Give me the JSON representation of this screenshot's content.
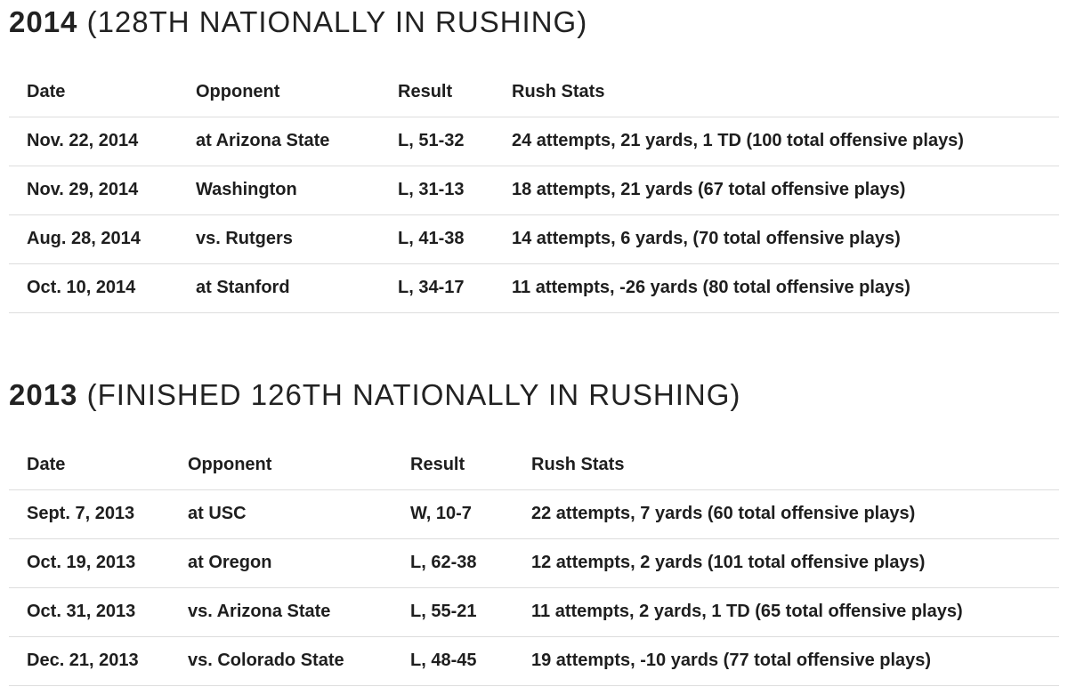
{
  "sections": [
    {
      "heading": {
        "year": "2014",
        "note": "(128TH NATIONALLY IN RUSHING)"
      },
      "table": {
        "columns": [
          "Date",
          "Opponent",
          "Result",
          "Rush Stats"
        ],
        "rows": [
          [
            "Nov. 22, 2014",
            "at Arizona State",
            "L, 51-32",
            "24 attempts, 21 yards, 1 TD (100 total offensive plays)"
          ],
          [
            "Nov. 29, 2014",
            "Washington",
            "L, 31-13",
            "18 attempts, 21 yards (67 total offensive plays)"
          ],
          [
            "Aug. 28, 2014",
            "vs. Rutgers",
            "L, 41-38",
            "14 attempts, 6 yards, (70 total offensive plays)"
          ],
          [
            "Oct. 10, 2014",
            "at Stanford",
            "L, 34-17",
            "11 attempts, -26 yards (80 total offensive plays)"
          ]
        ]
      }
    },
    {
      "heading": {
        "year": "2013",
        "note": "(FINISHED 126TH NATIONALLY IN RUSHING)"
      },
      "table": {
        "columns": [
          "Date",
          "Opponent",
          "Result",
          "Rush Stats"
        ],
        "rows": [
          [
            "Sept. 7, 2013",
            "at USC",
            "W, 10-7",
            "22 attempts, 7 yards (60 total offensive plays)"
          ],
          [
            "Oct. 19, 2013",
            "at Oregon",
            "L, 62-38",
            "12 attempts, 2 yards (101 total offensive plays)"
          ],
          [
            "Oct. 31, 2013",
            "vs. Arizona State",
            "L, 55-21",
            "11 attempts, 2 yards, 1 TD (65 total offensive plays)"
          ],
          [
            "Dec. 21, 2013",
            "vs. Colorado State",
            "L, 48-45",
            "19 attempts, -10 yards (77 total offensive plays)"
          ]
        ]
      }
    }
  ]
}
